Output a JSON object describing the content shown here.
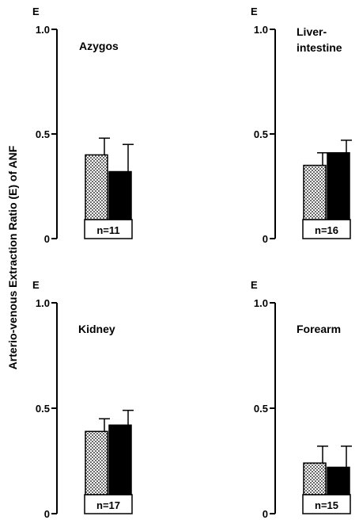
{
  "ylabel": "Arterio-venous Extraction Ratio (E) of ANF",
  "chart_data": [
    {
      "type": "bar",
      "title": "Azygos",
      "title_lines": [
        "Azygos"
      ],
      "axis_label": "E",
      "ylim": [
        0,
        1.0
      ],
      "yticks": [
        "0",
        "0.5",
        "1.0"
      ],
      "bars": [
        {
          "fill": "dotted",
          "value": 0.4,
          "error": 0.08
        },
        {
          "fill": "solid",
          "value": 0.32,
          "error": 0.13
        }
      ],
      "n_label": "n=11"
    },
    {
      "type": "bar",
      "title": "Liver-intestine",
      "title_lines": [
        "Liver-",
        "intestine"
      ],
      "axis_label": "E",
      "ylim": [
        0,
        1.0
      ],
      "yticks": [
        "0",
        "0.5",
        "1.0"
      ],
      "bars": [
        {
          "fill": "dotted",
          "value": 0.35,
          "error": 0.06
        },
        {
          "fill": "solid",
          "value": 0.41,
          "error": 0.06
        }
      ],
      "n_label": "n=16"
    },
    {
      "type": "bar",
      "title": "Kidney",
      "title_lines": [
        "Kidney"
      ],
      "axis_label": "E",
      "ylim": [
        0,
        1.0
      ],
      "yticks": [
        "0",
        "0.5",
        "1.0"
      ],
      "bars": [
        {
          "fill": "dotted",
          "value": 0.39,
          "error": 0.06
        },
        {
          "fill": "solid",
          "value": 0.42,
          "error": 0.07
        }
      ],
      "n_label": "n=17"
    },
    {
      "type": "bar",
      "title": "Forearm",
      "title_lines": [
        "Forearm"
      ],
      "axis_label": "E",
      "ylim": [
        0,
        1.0
      ],
      "yticks": [
        "0",
        "0.5",
        "1.0"
      ],
      "bars": [
        {
          "fill": "dotted",
          "value": 0.24,
          "error": 0.08
        },
        {
          "fill": "solid",
          "value": 0.22,
          "error": 0.1
        }
      ],
      "n_label": "n=15"
    }
  ]
}
